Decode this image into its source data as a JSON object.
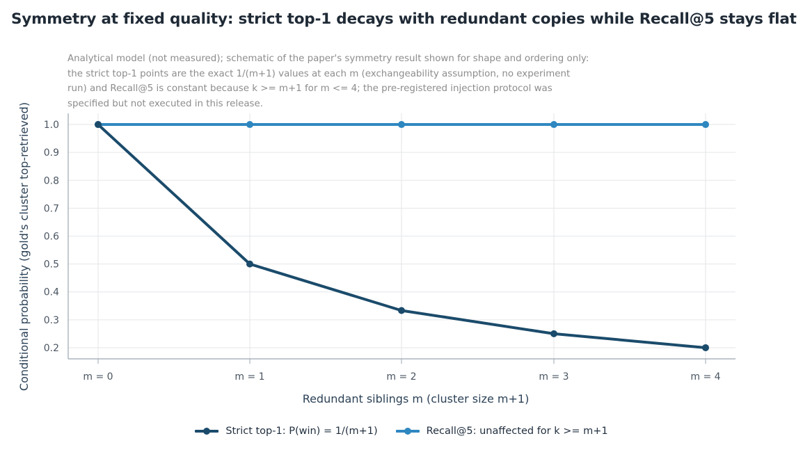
{
  "title": "Symmetry at fixed quality: strict top-1 decays with redundant copies while Recall@5 stays flat",
  "subtitle_lines": [
    "Analytical model (not measured); schematic of the paper's symmetry result shown for shape and ordering only:",
    "the strict top-1 points are the exact 1/(m+1) values at each m (exchangeability assumption, no experiment",
    "run) and Recall@5 is constant because k >= m+1 for m <= 4; the pre-registered injection protocol was",
    "specified but not executed in this release."
  ],
  "colors": {
    "strict": "#1b4b6b",
    "recall": "#2f87c0",
    "grid": "#e4e6e9",
    "axis": "#9aa7b1"
  },
  "chart_data": {
    "type": "line",
    "categories": [
      "m = 0",
      "m = 1",
      "m = 2",
      "m = 3",
      "m = 4"
    ],
    "xlabel": "Redundant siblings m (cluster size m+1)",
    "ylabel": "Conditional probability (gold's cluster top-retrieved)",
    "ylim": [
      0.16,
      1.04
    ],
    "yticks": [
      0.2,
      0.3,
      0.4,
      0.5,
      0.6,
      0.7,
      0.8,
      0.9,
      1.0
    ],
    "ytick_labels": [
      "0.2",
      "0.3",
      "0.4",
      "0.5",
      "0.6",
      "0.7",
      "0.8",
      "0.9",
      "1.0"
    ],
    "grid": true,
    "legend_position": "bottom-center",
    "series": [
      {
        "name": "Strict top-1: P(win) = 1/(m+1)",
        "values": [
          1.0,
          0.5,
          0.3333,
          0.25,
          0.2
        ],
        "color_key": "strict"
      },
      {
        "name": "Recall@5: unaffected for k >= m+1",
        "values": [
          1.0,
          1.0,
          1.0,
          1.0,
          1.0
        ],
        "color_key": "recall"
      }
    ]
  }
}
